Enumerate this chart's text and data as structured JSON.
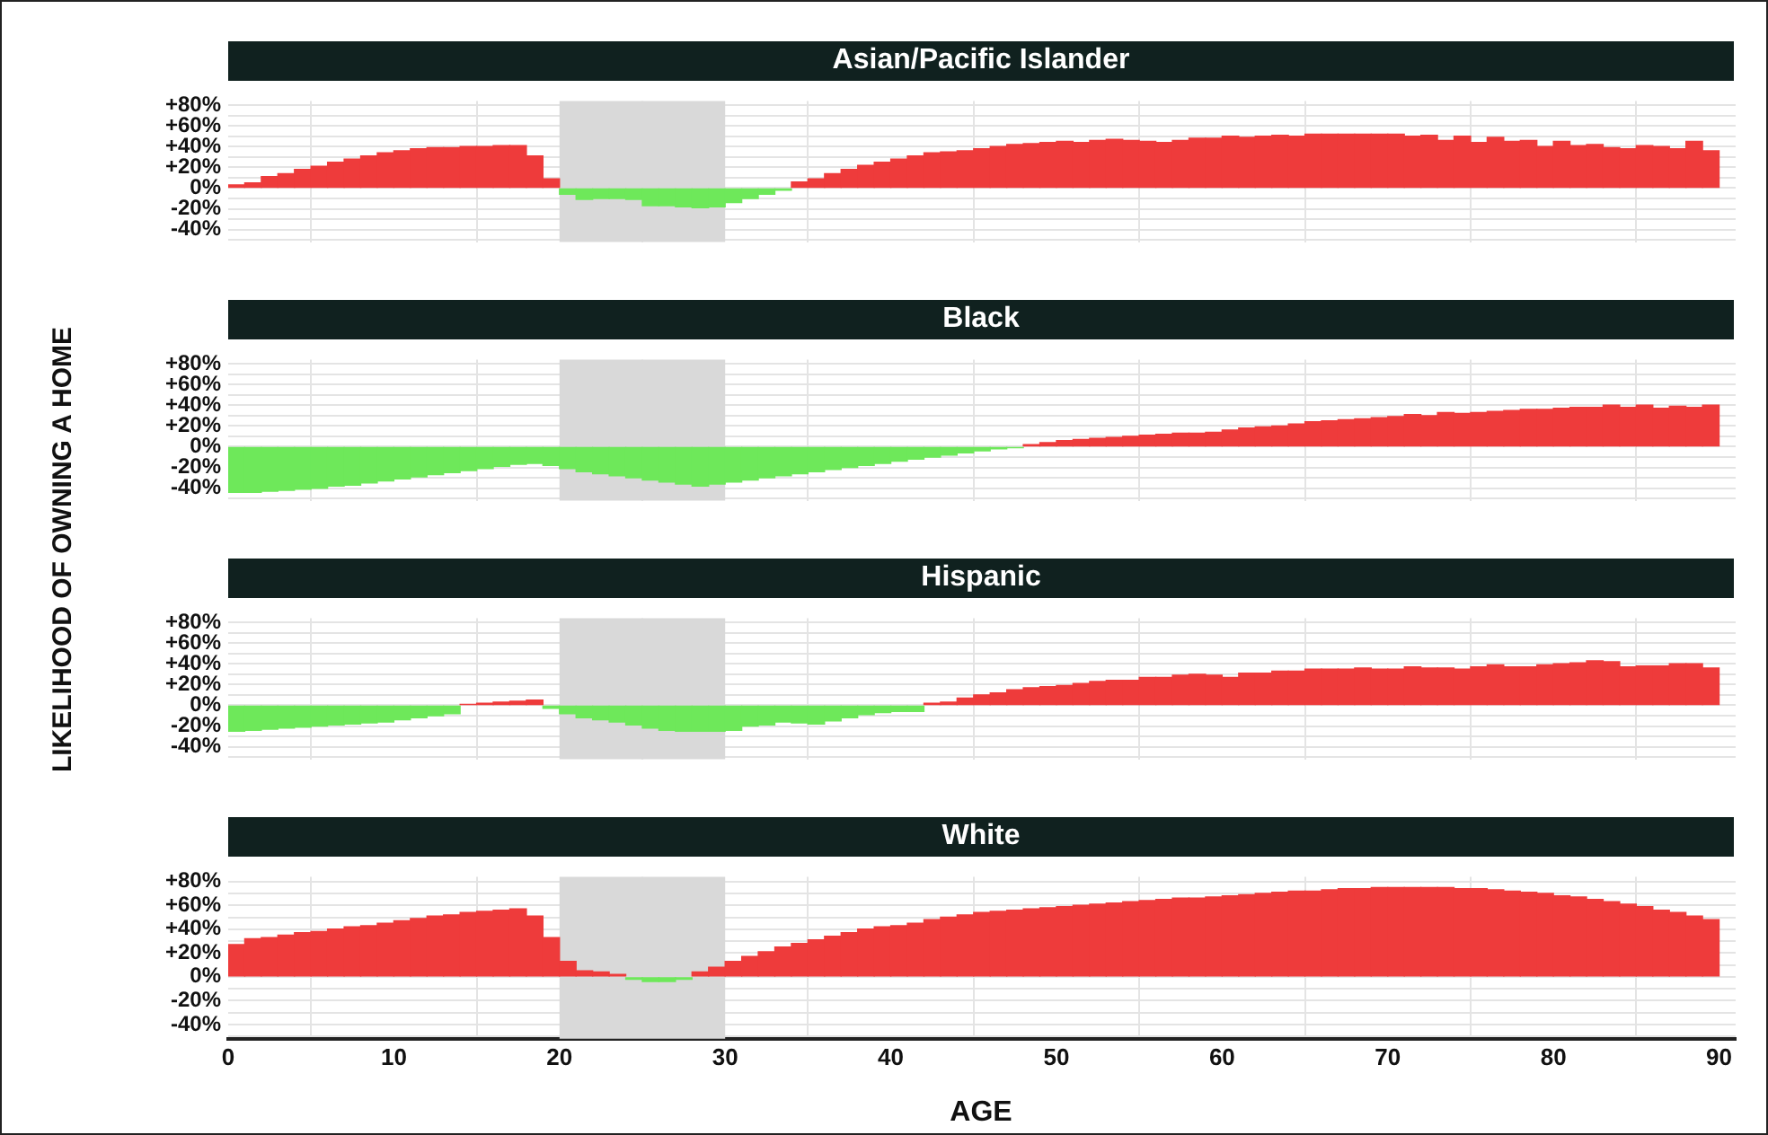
{
  "chart_data": [
    {
      "type": "histogram",
      "title": "Asian/Pacific Islander",
      "ylabel": "LIKELIHOOD OF OWNING A HOME",
      "bins": [
        0,
        1,
        2,
        3,
        4,
        5,
        6,
        7,
        8,
        9,
        10,
        11,
        12,
        13,
        14,
        15,
        16,
        17,
        18,
        19,
        20,
        21,
        22,
        23,
        24,
        25,
        26,
        27,
        28,
        29,
        30,
        31,
        32,
        33,
        34,
        35,
        36,
        37,
        38,
        39,
        40,
        41,
        42,
        43,
        44,
        45,
        46,
        47,
        48,
        49,
        50,
        51,
        52,
        53,
        54,
        55,
        56,
        57,
        58,
        59,
        60,
        61,
        62,
        63,
        64,
        65,
        66,
        67,
        68,
        69,
        70,
        71,
        72,
        73,
        74,
        75,
        76,
        77,
        78,
        79,
        80,
        81,
        82,
        83,
        84,
        85,
        86,
        87,
        88,
        89,
        90
      ],
      "values": [
        3,
        5,
        11,
        14,
        18,
        21,
        25,
        28,
        31,
        34,
        36,
        38,
        39,
        39,
        40,
        40,
        41,
        41,
        31,
        9,
        -6,
        -11,
        -10,
        -10,
        -11,
        -17,
        -17,
        -18,
        -19,
        -18,
        -14,
        -10,
        -6,
        -2,
        6,
        9,
        14,
        18,
        22,
        25,
        28,
        31,
        34,
        35,
        36,
        38,
        40,
        42,
        43,
        44,
        45,
        44,
        46,
        47,
        46,
        45,
        44,
        46,
        48,
        48,
        50,
        49,
        50,
        51,
        50,
        52,
        52,
        52,
        52,
        52,
        52,
        50,
        51,
        46,
        50,
        44,
        49,
        45,
        46,
        40,
        45,
        41,
        42,
        39,
        38,
        41,
        40,
        38,
        45,
        36
      ],
      "colors": [
        "#ee3b3b",
        "#ee3b3b",
        "#ee3b3b",
        "#ee3b3b",
        "#ee3b3b",
        "#ee3b3b",
        "#ee3b3b",
        "#ee3b3b",
        "#ee3b3b",
        "#ee3b3b",
        "#ee3b3b",
        "#ee3b3b",
        "#ee3b3b",
        "#ee3b3b",
        "#ee3b3b",
        "#ee3b3b",
        "#ee3b3b",
        "#ee3b3b",
        "#ee3b3b",
        "#ee3b3b",
        "#6ee85a",
        "#6ee85a",
        "#6ee85a",
        "#6ee85a",
        "#6ee85a",
        "#6ee85a",
        "#6ee85a",
        "#6ee85a",
        "#6ee85a",
        "#6ee85a",
        "#6ee85a",
        "#6ee85a",
        "#6ee85a",
        "#6ee85a",
        "#ee3b3b",
        "#ee3b3b",
        "#ee3b3b",
        "#ee3b3b",
        "#ee3b3b",
        "#ee3b3b",
        "#ee3b3b",
        "#ee3b3b",
        "#ee3b3b",
        "#ee3b3b",
        "#ee3b3b",
        "#ee3b3b",
        "#ee3b3b",
        "#ee3b3b",
        "#ee3b3b",
        "#ee3b3b",
        "#ee3b3b",
        "#ee3b3b",
        "#ee3b3b",
        "#ee3b3b",
        "#ee3b3b",
        "#ee3b3b",
        "#ee3b3b",
        "#ee3b3b",
        "#ee3b3b",
        "#ee3b3b",
        "#ee3b3b",
        "#ee3b3b",
        "#ee3b3b",
        "#ee3b3b",
        "#ee3b3b",
        "#ee3b3b",
        "#ee3b3b",
        "#ee3b3b",
        "#ee3b3b",
        "#ee3b3b",
        "#ee3b3b",
        "#ee3b3b",
        "#ee3b3b",
        "#ee3b3b",
        "#ee3b3b",
        "#ee3b3b",
        "#ee3b3b",
        "#ee3b3b",
        "#ee3b3b",
        "#ee3b3b",
        "#ee3b3b",
        "#ee3b3b",
        "#ee3b3b",
        "#ee3b3b",
        "#ee3b3b",
        "#ee3b3b",
        "#ee3b3b",
        "#ee3b3b",
        "#ee3b3b",
        "#ee3b3b"
      ],
      "xlim": [
        0,
        91
      ],
      "xticks": [
        0,
        10,
        20,
        30,
        40,
        50,
        60,
        70,
        80,
        90
      ],
      "ylim": [
        -52,
        84
      ],
      "yticks": [
        {
          "value": -50,
          "label": null
        },
        {
          "value": -40,
          "label": "-40%"
        },
        {
          "value": -30,
          "label": null
        },
        {
          "value": -20,
          "label": "-20%"
        },
        {
          "value": -10,
          "label": null
        },
        {
          "value": 0,
          "label": "0%"
        },
        {
          "value": 10,
          "label": null
        },
        {
          "value": 20,
          "label": "+20%"
        },
        {
          "value": 30,
          "label": null
        },
        {
          "value": 40,
          "label": "+40%"
        },
        {
          "value": 50,
          "label": null
        },
        {
          "value": 60,
          "label": "+60%"
        },
        {
          "value": 70,
          "label": null
        },
        {
          "value": 80,
          "label": "+80%"
        }
      ],
      "bands": [
        {
          "axis": "x",
          "from": 20,
          "to": 30,
          "color": "#d9d9d9"
        }
      ],
      "grid": true,
      "legend": false,
      "tick_labels": "y"
    },
    {
      "type": "histogram",
      "title": "Black",
      "bins": [
        0,
        1,
        2,
        3,
        4,
        5,
        6,
        7,
        8,
        9,
        10,
        11,
        12,
        13,
        14,
        15,
        16,
        17,
        18,
        19,
        20,
        21,
        22,
        23,
        24,
        25,
        26,
        27,
        28,
        29,
        30,
        31,
        32,
        33,
        34,
        35,
        36,
        37,
        38,
        39,
        40,
        41,
        42,
        43,
        44,
        45,
        46,
        47,
        48,
        49,
        50,
        51,
        52,
        53,
        54,
        55,
        56,
        57,
        58,
        59,
        60,
        61,
        62,
        63,
        64,
        65,
        66,
        67,
        68,
        69,
        70,
        71,
        72,
        73,
        74,
        75,
        76,
        77,
        78,
        79,
        80,
        81,
        82,
        83,
        84,
        85,
        86,
        87,
        88,
        89,
        90
      ],
      "values": [
        -44,
        -44,
        -43,
        -42,
        -41,
        -40,
        -38,
        -37,
        -35,
        -33,
        -31,
        -29,
        -27,
        -25,
        -23,
        -21,
        -19,
        -17,
        -16,
        -18,
        -21,
        -24,
        -26,
        -28,
        -30,
        -32,
        -34,
        -36,
        -38,
        -36,
        -34,
        -32,
        -30,
        -28,
        -26,
        -24,
        -22,
        -20,
        -18,
        -16,
        -14,
        -12,
        -10,
        -8,
        -6,
        -4,
        -2,
        -1,
        2,
        4,
        6,
        7,
        8,
        9,
        10,
        11,
        12,
        13,
        13,
        14,
        16,
        18,
        19,
        20,
        22,
        24,
        25,
        26,
        27,
        28,
        29,
        31,
        30,
        33,
        32,
        33,
        34,
        35,
        36,
        36,
        37,
        38,
        38,
        40,
        38,
        40,
        37,
        39,
        38,
        40
      ],
      "colors": [
        "#6ee85a",
        "#6ee85a",
        "#6ee85a",
        "#6ee85a",
        "#6ee85a",
        "#6ee85a",
        "#6ee85a",
        "#6ee85a",
        "#6ee85a",
        "#6ee85a",
        "#6ee85a",
        "#6ee85a",
        "#6ee85a",
        "#6ee85a",
        "#6ee85a",
        "#6ee85a",
        "#6ee85a",
        "#6ee85a",
        "#6ee85a",
        "#6ee85a",
        "#6ee85a",
        "#6ee85a",
        "#6ee85a",
        "#6ee85a",
        "#6ee85a",
        "#6ee85a",
        "#6ee85a",
        "#6ee85a",
        "#6ee85a",
        "#6ee85a",
        "#6ee85a",
        "#6ee85a",
        "#6ee85a",
        "#6ee85a",
        "#6ee85a",
        "#6ee85a",
        "#6ee85a",
        "#6ee85a",
        "#6ee85a",
        "#6ee85a",
        "#6ee85a",
        "#6ee85a",
        "#6ee85a",
        "#6ee85a",
        "#6ee85a",
        "#6ee85a",
        "#6ee85a",
        "#6ee85a",
        "#ee3b3b",
        "#ee3b3b",
        "#ee3b3b",
        "#ee3b3b",
        "#ee3b3b",
        "#ee3b3b",
        "#ee3b3b",
        "#ee3b3b",
        "#ee3b3b",
        "#ee3b3b",
        "#ee3b3b",
        "#ee3b3b",
        "#ee3b3b",
        "#ee3b3b",
        "#ee3b3b",
        "#ee3b3b",
        "#ee3b3b",
        "#ee3b3b",
        "#ee3b3b",
        "#ee3b3b",
        "#ee3b3b",
        "#ee3b3b",
        "#ee3b3b",
        "#ee3b3b",
        "#ee3b3b",
        "#ee3b3b",
        "#ee3b3b",
        "#ee3b3b",
        "#ee3b3b",
        "#ee3b3b",
        "#ee3b3b",
        "#ee3b3b",
        "#ee3b3b",
        "#ee3b3b",
        "#ee3b3b",
        "#ee3b3b",
        "#ee3b3b",
        "#ee3b3b",
        "#ee3b3b",
        "#ee3b3b",
        "#ee3b3b",
        "#ee3b3b"
      ],
      "xlim": [
        0,
        91
      ],
      "xticks": [
        0,
        10,
        20,
        30,
        40,
        50,
        60,
        70,
        80,
        90
      ],
      "ylim": [
        -52,
        84
      ],
      "yticks": [
        {
          "value": -50,
          "label": null
        },
        {
          "value": -40,
          "label": "-40%"
        },
        {
          "value": -30,
          "label": null
        },
        {
          "value": -20,
          "label": "-20%"
        },
        {
          "value": -10,
          "label": null
        },
        {
          "value": 0,
          "label": "0%"
        },
        {
          "value": 10,
          "label": null
        },
        {
          "value": 20,
          "label": "+20%"
        },
        {
          "value": 30,
          "label": null
        },
        {
          "value": 40,
          "label": "+40%"
        },
        {
          "value": 50,
          "label": null
        },
        {
          "value": 60,
          "label": "+60%"
        },
        {
          "value": 70,
          "label": null
        },
        {
          "value": 80,
          "label": "+80%"
        }
      ],
      "bands": [
        {
          "axis": "x",
          "from": 20,
          "to": 30,
          "color": "#d9d9d9"
        }
      ],
      "grid": true,
      "legend": false,
      "tick_labels": "y"
    },
    {
      "type": "histogram",
      "title": "Hispanic",
      "bins": [
        0,
        1,
        2,
        3,
        4,
        5,
        6,
        7,
        8,
        9,
        10,
        11,
        12,
        13,
        14,
        15,
        16,
        17,
        18,
        19,
        20,
        21,
        22,
        23,
        24,
        25,
        26,
        27,
        28,
        29,
        30,
        31,
        32,
        33,
        34,
        35,
        36,
        37,
        38,
        39,
        40,
        41,
        42,
        43,
        44,
        45,
        46,
        47,
        48,
        49,
        50,
        51,
        52,
        53,
        54,
        55,
        56,
        57,
        58,
        59,
        60,
        61,
        62,
        63,
        64,
        65,
        66,
        67,
        68,
        69,
        70,
        71,
        72,
        73,
        74,
        75,
        76,
        77,
        78,
        79,
        80,
        81,
        82,
        83,
        84,
        85,
        86,
        87,
        88,
        89,
        90
      ],
      "values": [
        -25,
        -24,
        -23,
        -22,
        -21,
        -20,
        -19,
        -18,
        -17,
        -16,
        -14,
        -12,
        -10,
        -8,
        1,
        2,
        3,
        4,
        5,
        -3,
        -8,
        -12,
        -14,
        -16,
        -19,
        -22,
        -24,
        -25,
        -25,
        -25,
        -24,
        -20,
        -19,
        -16,
        -17,
        -18,
        -15,
        -12,
        -9,
        -7,
        -6,
        -6,
        2,
        3,
        7,
        10,
        12,
        15,
        17,
        18,
        19,
        21,
        23,
        24,
        24,
        27,
        27,
        29,
        30,
        29,
        27,
        31,
        31,
        33,
        33,
        35,
        35,
        35,
        36,
        35,
        35,
        37,
        36,
        36,
        35,
        37,
        39,
        37,
        37,
        39,
        40,
        41,
        43,
        42,
        37,
        38,
        38,
        40,
        40,
        36
      ],
      "colors": [
        "#6ee85a",
        "#6ee85a",
        "#6ee85a",
        "#6ee85a",
        "#6ee85a",
        "#6ee85a",
        "#6ee85a",
        "#6ee85a",
        "#6ee85a",
        "#6ee85a",
        "#6ee85a",
        "#6ee85a",
        "#6ee85a",
        "#6ee85a",
        "#ee3b3b",
        "#ee3b3b",
        "#ee3b3b",
        "#ee3b3b",
        "#ee3b3b",
        "#6ee85a",
        "#6ee85a",
        "#6ee85a",
        "#6ee85a",
        "#6ee85a",
        "#6ee85a",
        "#6ee85a",
        "#6ee85a",
        "#6ee85a",
        "#6ee85a",
        "#6ee85a",
        "#6ee85a",
        "#6ee85a",
        "#6ee85a",
        "#6ee85a",
        "#6ee85a",
        "#6ee85a",
        "#6ee85a",
        "#6ee85a",
        "#6ee85a",
        "#6ee85a",
        "#6ee85a",
        "#6ee85a",
        "#ee3b3b",
        "#ee3b3b",
        "#ee3b3b",
        "#ee3b3b",
        "#ee3b3b",
        "#ee3b3b",
        "#ee3b3b",
        "#ee3b3b",
        "#ee3b3b",
        "#ee3b3b",
        "#ee3b3b",
        "#ee3b3b",
        "#ee3b3b",
        "#ee3b3b",
        "#ee3b3b",
        "#ee3b3b",
        "#ee3b3b",
        "#ee3b3b",
        "#ee3b3b",
        "#ee3b3b",
        "#ee3b3b",
        "#ee3b3b",
        "#ee3b3b",
        "#ee3b3b",
        "#ee3b3b",
        "#ee3b3b",
        "#ee3b3b",
        "#ee3b3b",
        "#ee3b3b",
        "#ee3b3b",
        "#ee3b3b",
        "#ee3b3b",
        "#ee3b3b",
        "#ee3b3b",
        "#ee3b3b",
        "#ee3b3b",
        "#ee3b3b",
        "#ee3b3b",
        "#ee3b3b",
        "#ee3b3b",
        "#ee3b3b",
        "#ee3b3b",
        "#ee3b3b",
        "#ee3b3b",
        "#ee3b3b",
        "#ee3b3b",
        "#ee3b3b",
        "#ee3b3b"
      ],
      "xlim": [
        0,
        91
      ],
      "xticks": [
        0,
        10,
        20,
        30,
        40,
        50,
        60,
        70,
        80,
        90
      ],
      "ylim": [
        -52,
        84
      ],
      "yticks": [
        {
          "value": -50,
          "label": null
        },
        {
          "value": -40,
          "label": "-40%"
        },
        {
          "value": -30,
          "label": null
        },
        {
          "value": -20,
          "label": "-20%"
        },
        {
          "value": -10,
          "label": null
        },
        {
          "value": 0,
          "label": "0%"
        },
        {
          "value": 10,
          "label": null
        },
        {
          "value": 20,
          "label": "+20%"
        },
        {
          "value": 30,
          "label": null
        },
        {
          "value": 40,
          "label": "+40%"
        },
        {
          "value": 50,
          "label": null
        },
        {
          "value": 60,
          "label": "+60%"
        },
        {
          "value": 70,
          "label": null
        },
        {
          "value": 80,
          "label": "+80%"
        }
      ],
      "bands": [
        {
          "axis": "x",
          "from": 20,
          "to": 30,
          "color": "#d9d9d9"
        }
      ],
      "grid": true,
      "legend": false,
      "tick_labels": "y"
    },
    {
      "type": "histogram",
      "title": "White",
      "xlabel": "AGE",
      "bins": [
        0,
        1,
        2,
        3,
        4,
        5,
        6,
        7,
        8,
        9,
        10,
        11,
        12,
        13,
        14,
        15,
        16,
        17,
        18,
        19,
        20,
        21,
        22,
        23,
        24,
        25,
        26,
        27,
        28,
        29,
        30,
        31,
        32,
        33,
        34,
        35,
        36,
        37,
        38,
        39,
        40,
        41,
        42,
        43,
        44,
        45,
        46,
        47,
        48,
        49,
        50,
        51,
        52,
        53,
        54,
        55,
        56,
        57,
        58,
        59,
        60,
        61,
        62,
        63,
        64,
        65,
        66,
        67,
        68,
        69,
        70,
        71,
        72,
        73,
        74,
        75,
        76,
        77,
        78,
        79,
        80,
        81,
        82,
        83,
        84,
        85,
        86,
        87,
        88,
        89,
        90
      ],
      "values": [
        27,
        32,
        33,
        35,
        37,
        38,
        40,
        42,
        43,
        45,
        47,
        49,
        51,
        52,
        54,
        55,
        56,
        57,
        51,
        33,
        13,
        5,
        4,
        2,
        -2,
        -4,
        -4,
        -2,
        4,
        8,
        13,
        17,
        21,
        25,
        28,
        31,
        34,
        37,
        40,
        42,
        43,
        45,
        48,
        50,
        52,
        54,
        55,
        56,
        57,
        58,
        59,
        60,
        61,
        62,
        63,
        64,
        65,
        66,
        66,
        67,
        68,
        69,
        70,
        71,
        72,
        72,
        73,
        74,
        74,
        75,
        75,
        75,
        75,
        75,
        74,
        74,
        73,
        72,
        71,
        70,
        68,
        67,
        65,
        63,
        61,
        59,
        56,
        54,
        51,
        48
      ],
      "colors": [
        "#ee3b3b",
        "#ee3b3b",
        "#ee3b3b",
        "#ee3b3b",
        "#ee3b3b",
        "#ee3b3b",
        "#ee3b3b",
        "#ee3b3b",
        "#ee3b3b",
        "#ee3b3b",
        "#ee3b3b",
        "#ee3b3b",
        "#ee3b3b",
        "#ee3b3b",
        "#ee3b3b",
        "#ee3b3b",
        "#ee3b3b",
        "#ee3b3b",
        "#ee3b3b",
        "#ee3b3b",
        "#ee3b3b",
        "#ee3b3b",
        "#ee3b3b",
        "#ee3b3b",
        "#6ee85a",
        "#6ee85a",
        "#6ee85a",
        "#6ee85a",
        "#ee3b3b",
        "#ee3b3b",
        "#ee3b3b",
        "#ee3b3b",
        "#ee3b3b",
        "#ee3b3b",
        "#ee3b3b",
        "#ee3b3b",
        "#ee3b3b",
        "#ee3b3b",
        "#ee3b3b",
        "#ee3b3b",
        "#ee3b3b",
        "#ee3b3b",
        "#ee3b3b",
        "#ee3b3b",
        "#ee3b3b",
        "#ee3b3b",
        "#ee3b3b",
        "#ee3b3b",
        "#ee3b3b",
        "#ee3b3b",
        "#ee3b3b",
        "#ee3b3b",
        "#ee3b3b",
        "#ee3b3b",
        "#ee3b3b",
        "#ee3b3b",
        "#ee3b3b",
        "#ee3b3b",
        "#ee3b3b",
        "#ee3b3b",
        "#ee3b3b",
        "#ee3b3b",
        "#ee3b3b",
        "#ee3b3b",
        "#ee3b3b",
        "#ee3b3b",
        "#ee3b3b",
        "#ee3b3b",
        "#ee3b3b",
        "#ee3b3b",
        "#ee3b3b",
        "#ee3b3b",
        "#ee3b3b",
        "#ee3b3b",
        "#ee3b3b",
        "#ee3b3b",
        "#ee3b3b",
        "#ee3b3b",
        "#ee3b3b",
        "#ee3b3b",
        "#ee3b3b",
        "#ee3b3b",
        "#ee3b3b",
        "#ee3b3b",
        "#ee3b3b",
        "#ee3b3b",
        "#ee3b3b",
        "#ee3b3b",
        "#ee3b3b",
        "#ee3b3b"
      ],
      "xlim": [
        0,
        91
      ],
      "xticks": [
        0,
        10,
        20,
        30,
        40,
        50,
        60,
        70,
        80,
        90
      ],
      "ylim": [
        -52,
        84
      ],
      "yticks": [
        {
          "value": -50,
          "label": null
        },
        {
          "value": -40,
          "label": "-40%"
        },
        {
          "value": -30,
          "label": null
        },
        {
          "value": -20,
          "label": "-20%"
        },
        {
          "value": -10,
          "label": null
        },
        {
          "value": 0,
          "label": "0%"
        },
        {
          "value": 10,
          "label": null
        },
        {
          "value": 20,
          "label": "+20%"
        },
        {
          "value": 30,
          "label": null
        },
        {
          "value": 40,
          "label": "+40%"
        },
        {
          "value": 50,
          "label": null
        },
        {
          "value": 60,
          "label": "+60%"
        },
        {
          "value": 70,
          "label": null
        },
        {
          "value": 80,
          "label": "+80%"
        }
      ],
      "bands": [
        {
          "axis": "x",
          "from": 20,
          "to": 30,
          "color": "#d9d9d9"
        }
      ],
      "grid": true,
      "legend": false
    }
  ]
}
